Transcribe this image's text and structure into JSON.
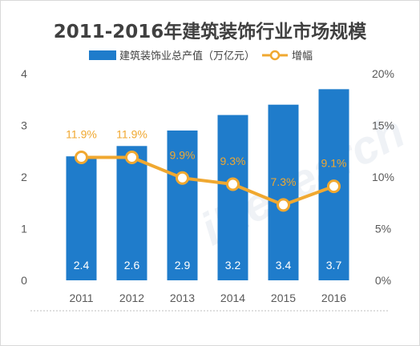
{
  "chart_data": {
    "type": "bar",
    "title": "2011-2016年建筑装饰行业市场规模",
    "categories": [
      "2011",
      "2012",
      "2013",
      "2014",
      "2015",
      "2016"
    ],
    "series": [
      {
        "name": "建筑装饰业总产值（万亿元）",
        "type": "bar",
        "axis": "left",
        "color": "#1f7ccb",
        "values": [
          2.4,
          2.6,
          2.9,
          3.2,
          3.4,
          3.7
        ],
        "labels": [
          "2.4",
          "2.6",
          "2.9",
          "3.2",
          "3.4",
          "3.7"
        ]
      },
      {
        "name": "增幅",
        "type": "line",
        "axis": "right",
        "color": "#f0a830",
        "values": [
          11.9,
          11.9,
          9.9,
          9.3,
          7.3,
          9.1
        ],
        "labels": [
          "11.9%",
          "11.9%",
          "9.9%",
          "9.3%",
          "7.3%",
          "9.1%"
        ]
      }
    ],
    "y_left": {
      "min": 0,
      "max": 4,
      "ticks": [
        "0",
        "1",
        "2",
        "3",
        "4"
      ]
    },
    "y_right": {
      "min": 0,
      "max": 20,
      "ticks": [
        "0%",
        "5%",
        "10%",
        "15%",
        "20%"
      ]
    },
    "grid": false,
    "legend_position": "top-center",
    "watermark": "iResearch"
  }
}
